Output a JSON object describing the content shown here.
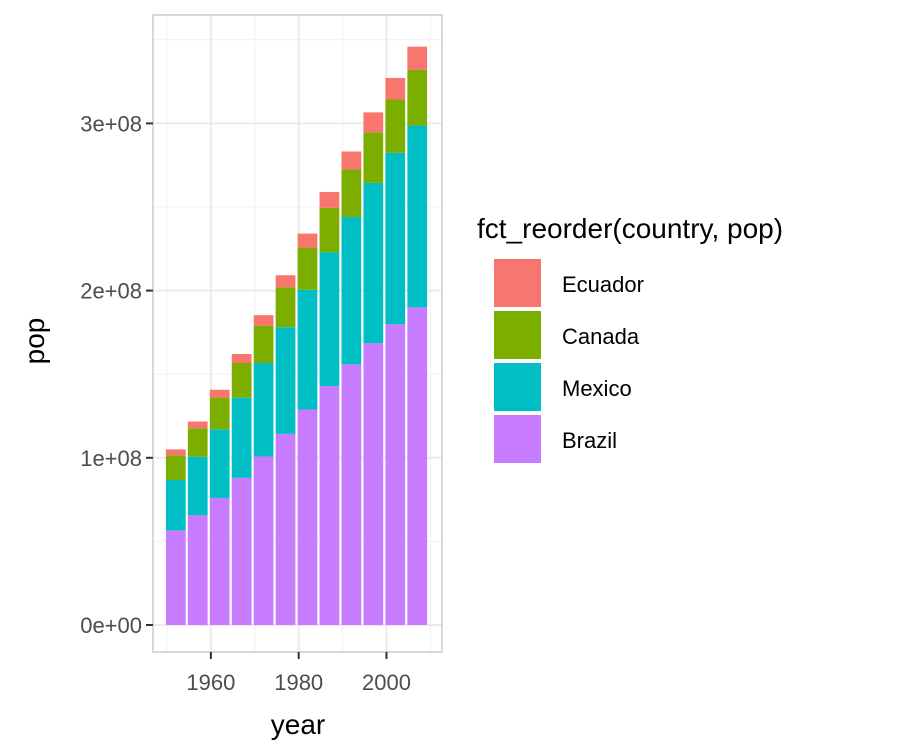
{
  "chart_data": {
    "type": "bar",
    "stacked": true,
    "xlabel": "year",
    "ylabel": "pop",
    "x": [
      1952,
      1957,
      1962,
      1967,
      1972,
      1977,
      1982,
      1987,
      1992,
      1997,
      2002,
      2007
    ],
    "x_ticks": [
      1960,
      1980,
      2000
    ],
    "x_tick_labels": [
      "1960",
      "1980",
      "2000"
    ],
    "ylim": [
      0,
      350000000
    ],
    "y_ticks": [
      0,
      100000000,
      200000000,
      300000000
    ],
    "y_tick_labels": [
      "0e+00",
      "1e+08",
      "2e+08",
      "3e+08"
    ],
    "grid": true,
    "legend": {
      "title": "fct_reorder(country, pop)",
      "placement": "right",
      "entries": [
        "Ecuador",
        "Canada",
        "Mexico",
        "Brazil"
      ]
    },
    "series": [
      {
        "name": "Brazil",
        "color": "#C77CFF",
        "values": [
          56600000,
          65600000,
          76000000,
          88000000,
          100800000,
          114300000,
          128900000,
          142900000,
          155900000,
          168500000,
          179900000,
          190000000
        ]
      },
      {
        "name": "Mexico",
        "color": "#00BFC4",
        "values": [
          30100000,
          35000000,
          41100000,
          47900000,
          55900000,
          63800000,
          71600000,
          80100000,
          88100000,
          95900000,
          102500000,
          108700000
        ]
      },
      {
        "name": "Canada",
        "color": "#7CAE00",
        "values": [
          14800000,
          17000000,
          18900000,
          20800000,
          22300000,
          23800000,
          25200000,
          26500000,
          28500000,
          30300000,
          31900000,
          33400000
        ]
      },
      {
        "name": "Ecuador",
        "color": "#F8766D",
        "values": [
          3500000,
          4100000,
          4700000,
          5400000,
          6300000,
          7300000,
          8400000,
          9500000,
          10700000,
          11900000,
          12900000,
          13800000
        ]
      }
    ]
  }
}
